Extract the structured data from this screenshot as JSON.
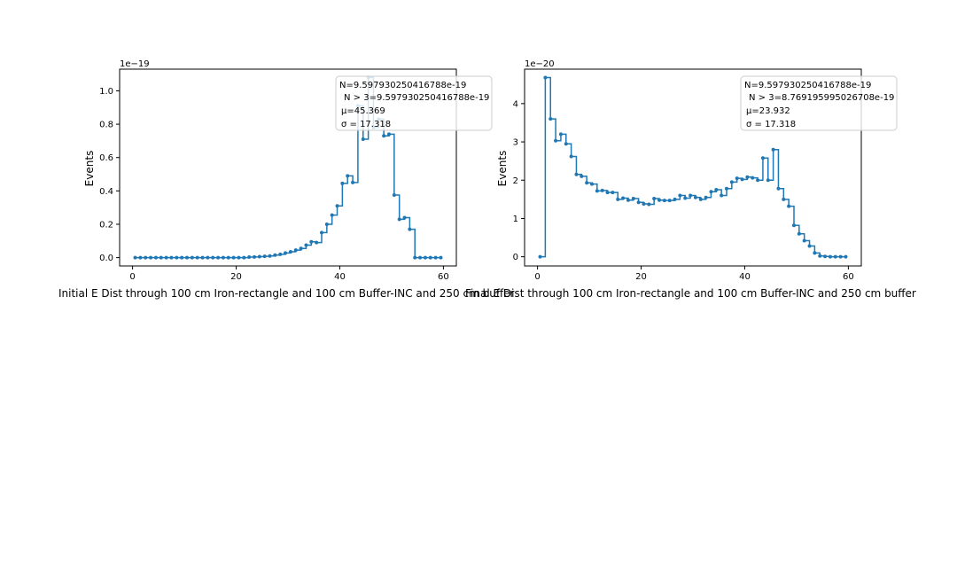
{
  "colors": {
    "series": "#1f77b4",
    "axis": "#000000",
    "legend_border": "#cccccc"
  },
  "chart_data": [
    {
      "type": "line",
      "drawstyle": "steps-post",
      "marker": "dot",
      "xlabel": "Initial E Dist through 100 cm Iron-rectangle and 100 cm Buffer-INC and 250 cm buffer",
      "ylabel": "Events",
      "offset_label": "1e−19",
      "xlim": [
        -2.5,
        62.5
      ],
      "ylim": [
        -0.05,
        1.13
      ],
      "xticks": [
        0,
        20,
        40,
        60
      ],
      "xtick_labels": [
        "0",
        "20",
        "40",
        "60"
      ],
      "yticks": [
        0.0,
        0.2,
        0.4,
        0.6,
        0.8,
        1.0
      ],
      "ytick_labels": [
        "0.0",
        "0.2",
        "0.4",
        "0.6",
        "0.8",
        "1.0"
      ],
      "stats": [
        "N=9.597930250416788e-19",
        "N > 3=9.597930250416788e-19",
        "μ=45.369",
        "σ = 17.318"
      ],
      "x": [
        0.5,
        1.5,
        2.5,
        3.5,
        4.5,
        5.5,
        6.5,
        7.5,
        8.5,
        9.5,
        10.5,
        11.5,
        12.5,
        13.5,
        14.5,
        15.5,
        16.5,
        17.5,
        18.5,
        19.5,
        20.5,
        21.5,
        22.5,
        23.5,
        24.5,
        25.5,
        26.5,
        27.5,
        28.5,
        29.5,
        30.5,
        31.5,
        32.5,
        33.5,
        34.5,
        35.5,
        36.5,
        37.5,
        38.5,
        39.5,
        40.5,
        41.5,
        42.5,
        43.5,
        44.5,
        45.5,
        46.5,
        47.5,
        48.5,
        49.5,
        50.5,
        51.5,
        52.5,
        53.5,
        54.5,
        55.5,
        56.5,
        57.5,
        58.5,
        59.5
      ],
      "values": [
        0,
        0,
        0,
        0,
        0,
        0,
        0,
        0,
        0,
        0,
        0,
        0,
        0,
        0,
        0,
        0,
        0,
        0,
        0,
        0,
        0,
        0,
        0.003,
        0.004,
        0.006,
        0.008,
        0.01,
        0.015,
        0.02,
        0.028,
        0.035,
        0.045,
        0.055,
        0.075,
        0.095,
        0.09,
        0.15,
        0.2,
        0.255,
        0.31,
        0.445,
        0.49,
        0.45,
        0.91,
        0.71,
        1.08,
        0.78,
        0.83,
        0.73,
        0.74,
        0.375,
        0.23,
        0.24,
        0.17,
        0,
        0,
        0,
        0,
        0,
        0
      ]
    },
    {
      "type": "line",
      "drawstyle": "steps-post",
      "marker": "dot",
      "xlabel": "Final E Dist through 100 cm Iron-rectangle and 100 cm Buffer-INC and 250 cm buffer",
      "ylabel": "Events",
      "offset_label": "1e−20",
      "xlim": [
        -2.5,
        62.5
      ],
      "ylim": [
        -0.24,
        4.9
      ],
      "xticks": [
        0,
        20,
        40,
        60
      ],
      "xtick_labels": [
        "0",
        "20",
        "40",
        "60"
      ],
      "yticks": [
        0,
        1,
        2,
        3,
        4
      ],
      "ytick_labels": [
        "0",
        "1",
        "2",
        "3",
        "4"
      ],
      "stats": [
        "N=9.597930250416788e-19",
        "N > 3=8.769195995026708e-19",
        "μ=23.932",
        "σ = 17.318"
      ],
      "x": [
        0.5,
        1.5,
        2.5,
        3.5,
        4.5,
        5.5,
        6.5,
        7.5,
        8.5,
        9.5,
        10.5,
        11.5,
        12.5,
        13.5,
        14.5,
        15.5,
        16.5,
        17.5,
        18.5,
        19.5,
        20.5,
        21.5,
        22.5,
        23.5,
        24.5,
        25.5,
        26.5,
        27.5,
        28.5,
        29.5,
        30.5,
        31.5,
        32.5,
        33.5,
        34.5,
        35.5,
        36.5,
        37.5,
        38.5,
        39.5,
        40.5,
        41.5,
        42.5,
        43.5,
        44.5,
        45.5,
        46.5,
        47.5,
        48.5,
        49.5,
        50.5,
        51.5,
        52.5,
        53.5,
        54.5,
        55.5,
        56.5,
        57.5,
        58.5,
        59.5
      ],
      "values": [
        0,
        4.68,
        3.6,
        3.03,
        3.2,
        2.95,
        2.62,
        2.15,
        2.1,
        1.93,
        1.9,
        1.72,
        1.73,
        1.68,
        1.68,
        1.5,
        1.53,
        1.48,
        1.52,
        1.42,
        1.38,
        1.37,
        1.52,
        1.48,
        1.47,
        1.47,
        1.5,
        1.6,
        1.53,
        1.6,
        1.55,
        1.5,
        1.55,
        1.7,
        1.75,
        1.6,
        1.78,
        1.95,
        2.05,
        2.02,
        2.08,
        2.06,
        2.0,
        2.58,
        2.0,
        2.8,
        1.78,
        1.5,
        1.32,
        0.82,
        0.6,
        0.42,
        0.28,
        0.1,
        0.02,
        0.01,
        0,
        0,
        0,
        0
      ]
    }
  ]
}
